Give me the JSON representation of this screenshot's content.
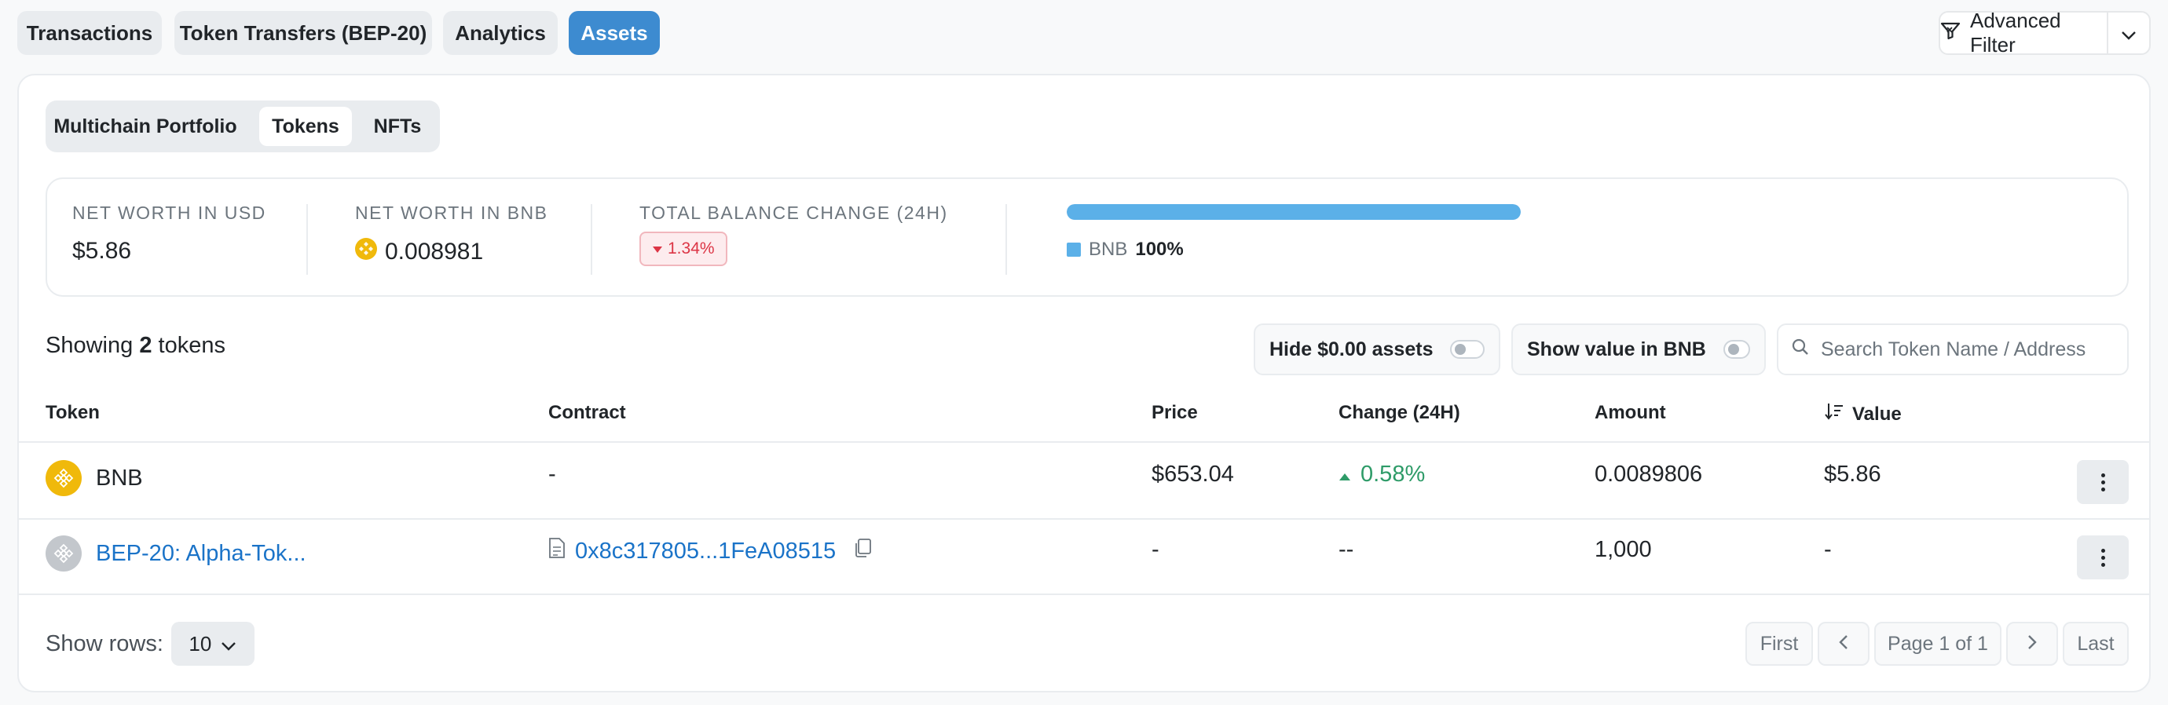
{
  "top_tabs": [
    {
      "label": "Transactions"
    },
    {
      "label": "Token Transfers (BEP-20)"
    },
    {
      "label": "Analytics"
    },
    {
      "label": "Assets"
    }
  ],
  "advanced_filter": {
    "label": "Advanced Filter",
    "icon": "filter-icon"
  },
  "sub_tabs": [
    {
      "label": "Multichain Portfolio"
    },
    {
      "label": "Tokens"
    },
    {
      "label": "NFTs"
    }
  ],
  "summary": {
    "net_worth_usd_label": "NET WORTH IN USD",
    "net_worth_usd_value": "$5.86",
    "net_worth_bnb_label": "NET WORTH IN BNB",
    "net_worth_bnb_value": "0.008981",
    "balance_change_label": "TOTAL BALANCE CHANGE (24H)",
    "balance_change_value": "1.34%",
    "allocation": {
      "name": "BNB",
      "percent": "100%",
      "fraction": 1.0
    }
  },
  "showing": {
    "prefix": "Showing",
    "count": "2",
    "suffix": "tokens"
  },
  "toggles": {
    "hide_zero": "Hide $0.00 assets",
    "show_bnb": "Show value in BNB"
  },
  "search": {
    "placeholder": "Search Token Name / Address"
  },
  "table": {
    "headers": {
      "token": "Token",
      "contract": "Contract",
      "price": "Price",
      "change": "Change (24H)",
      "amount": "Amount",
      "value": "Value"
    },
    "rows": [
      {
        "token": "BNB",
        "contract": "-",
        "price": "$653.04",
        "change": "0.58%",
        "amount": "0.0089806",
        "value": "$5.86"
      },
      {
        "token": "BEP-20: Alpha-Tok...",
        "contract": "0x8c317805...1FeA08515",
        "price": "-",
        "change": "--",
        "amount": "1,000",
        "value": "-"
      }
    ]
  },
  "footer": {
    "show_rows_label": "Show rows:",
    "rows_value": "10",
    "pagination": {
      "first": "First",
      "page_info": "Page 1 of 1",
      "last": "Last"
    }
  },
  "colors": {
    "accent": "#3d8bd0",
    "bnb": "#f0b90b",
    "positive": "#2e9b68",
    "negative": "#dc3545",
    "link": "#1a73c8"
  }
}
